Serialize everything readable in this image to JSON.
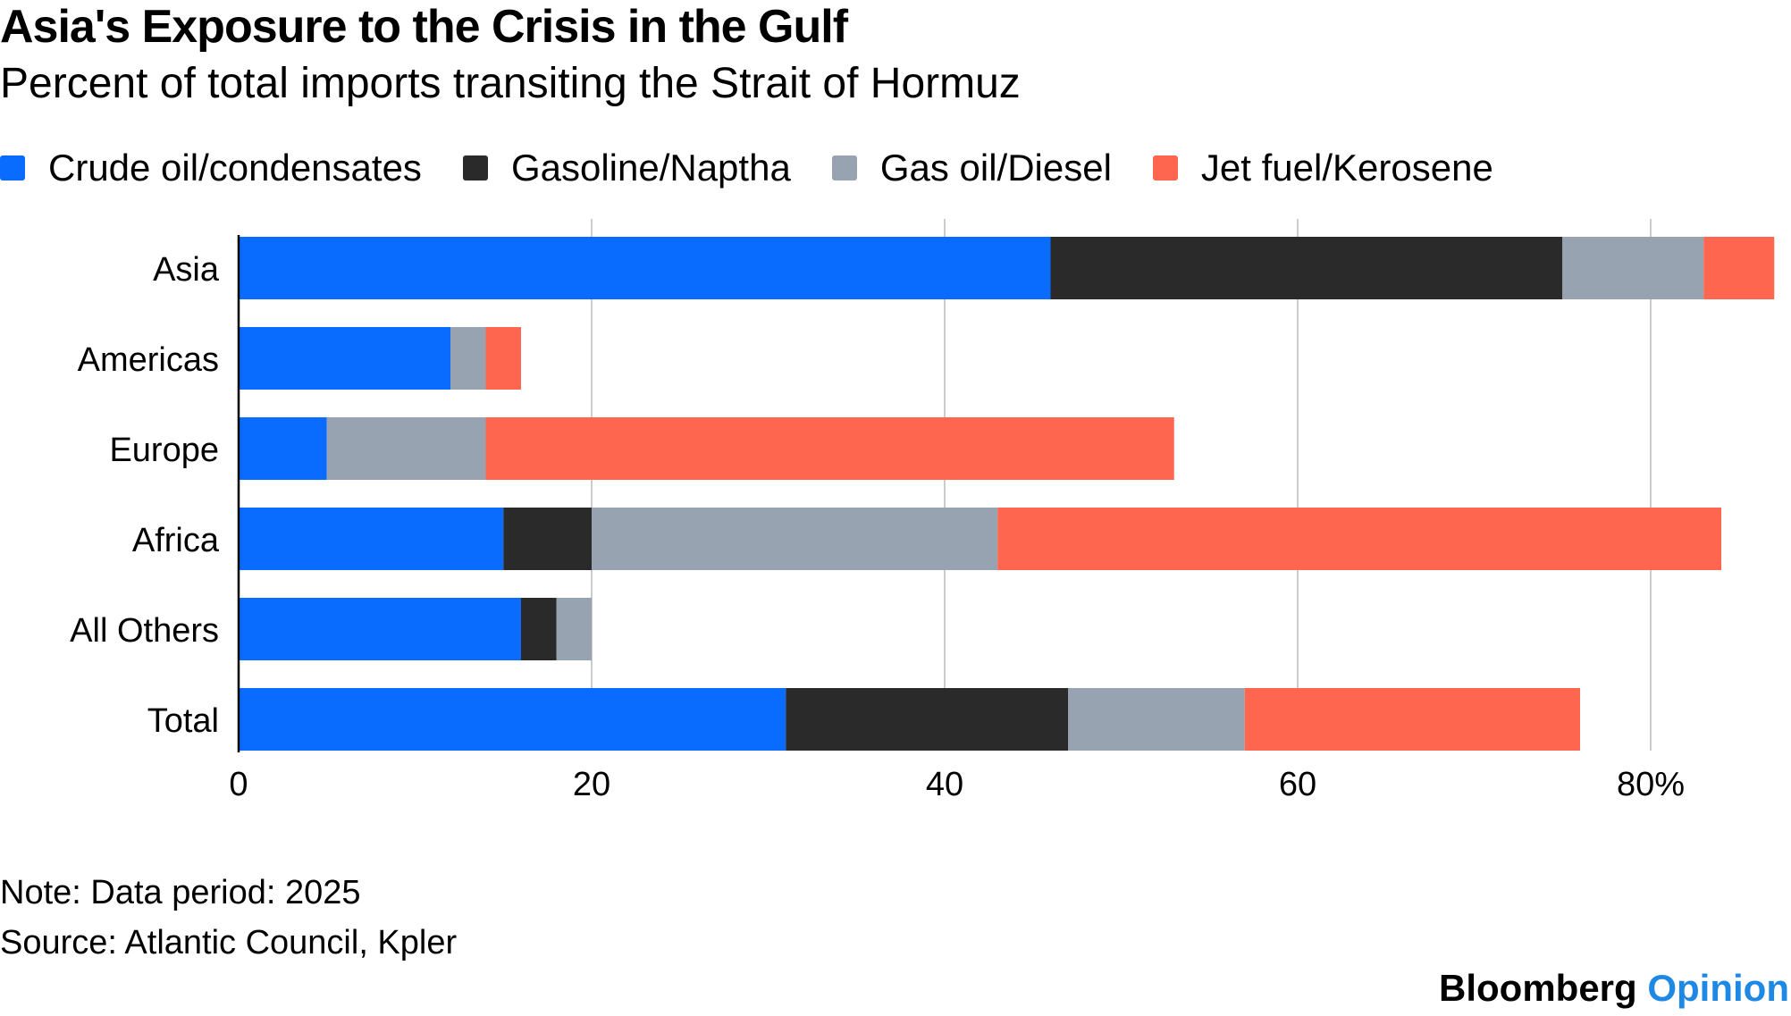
{
  "header": {
    "title": "Asia's Exposure to the Crisis in the Gulf",
    "subtitle": "Percent of total imports transiting the Strait of Hormuz"
  },
  "footer": {
    "note": "Note: Data period: 2025",
    "source": "Source: Atlantic Council, Kpler",
    "brand_main": "Bloomberg",
    "brand_sub": "Opinion"
  },
  "chart_data": {
    "type": "bar",
    "orientation": "horizontal",
    "stacked": true,
    "title": "Asia's Exposure to the Crisis in the Gulf",
    "subtitle": "Percent of total imports transiting the Strait of Hormuz",
    "categories": [
      "Asia",
      "Americas",
      "Europe",
      "Africa",
      "All Others",
      "Total"
    ],
    "series": [
      {
        "name": "Crude oil/condensates",
        "color": "#0A6CFF",
        "values": [
          46,
          12,
          5,
          15,
          16,
          31
        ]
      },
      {
        "name": "Gasoline/Naptha",
        "color": "#2A2A2A",
        "values": [
          29,
          0,
          0,
          5,
          2,
          16
        ]
      },
      {
        "name": "Gas oil/Diesel",
        "color": "#97A3B0",
        "values": [
          8,
          2,
          9,
          23,
          2,
          10
        ]
      },
      {
        "name": "Jet fuel/Kerosene",
        "color": "#FF6650",
        "values": [
          4,
          2,
          39,
          41,
          0,
          19
        ]
      }
    ],
    "xlim": [
      0,
      87
    ],
    "xticks": [
      0,
      20,
      40,
      60,
      80
    ],
    "xtick_labels": [
      "0",
      "20",
      "40",
      "60",
      "80%"
    ],
    "xlabel": "",
    "ylabel": "",
    "grid": true,
    "legend_position": "top-left",
    "gridline_color": "#CCCCCC"
  }
}
